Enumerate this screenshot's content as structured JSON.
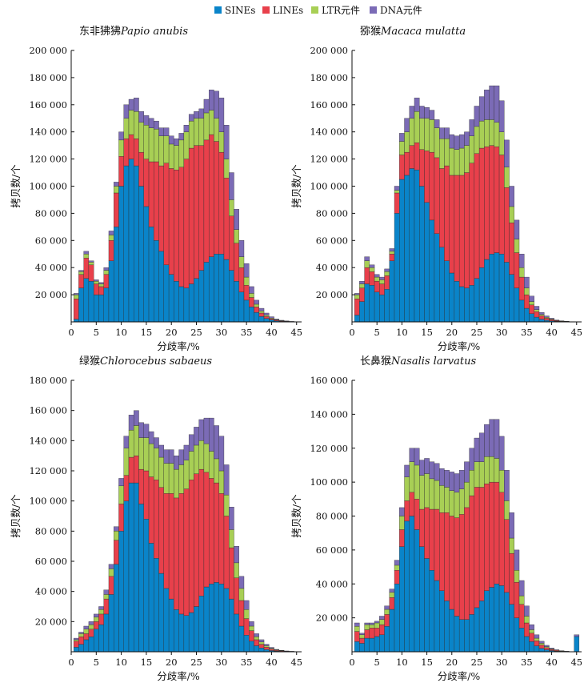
{
  "legend": [
    {
      "label": "SINEs",
      "color": "#0a84c9"
    },
    {
      "label": "LINEs",
      "color": "#e8404b"
    },
    {
      "label": "LTR元件",
      "color": "#a8cf55"
    },
    {
      "label": "DNA元件",
      "color": "#7b6bb6"
    }
  ],
  "chart_data": [
    {
      "type": "bar",
      "stacked": true,
      "title_cn": "东非狒狒",
      "title_latin": "Papio anubis",
      "xlabel": "分歧率/%",
      "ylabel": "拷贝数/个",
      "xlim": [
        0,
        46
      ],
      "ylim": [
        0,
        200000
      ],
      "xticks": [
        "0",
        "5",
        "10",
        "15",
        "20",
        "25",
        "30",
        "35",
        "40",
        "45"
      ],
      "yticks": [
        "20 000",
        "40 000",
        "60 000",
        "80 000",
        "100 000",
        "120 000",
        "140 000",
        "160 000",
        "180 000",
        "200 000"
      ],
      "categories": [
        1,
        2,
        3,
        4,
        5,
        6,
        7,
        8,
        9,
        10,
        11,
        12,
        13,
        14,
        15,
        16,
        17,
        18,
        19,
        20,
        21,
        22,
        23,
        24,
        25,
        26,
        27,
        28,
        29,
        30,
        31,
        32,
        33,
        34,
        35,
        36,
        37,
        38,
        39,
        40,
        41,
        42,
        43,
        44,
        45
      ],
      "series": [
        {
          "name": "SINEs",
          "values": [
            2000,
            25000,
            32000,
            30000,
            20000,
            20000,
            25000,
            45000,
            70000,
            100000,
            115000,
            120000,
            115000,
            100000,
            85000,
            70000,
            60000,
            52000,
            42000,
            35000,
            30000,
            26000,
            25000,
            28000,
            32000,
            38000,
            44000,
            48000,
            50000,
            50000,
            46000,
            38000,
            30000,
            22000,
            16000,
            11000,
            7000,
            4000,
            2500,
            1500,
            800,
            400,
            200,
            100,
            50
          ]
        },
        {
          "name": "LINEs",
          "values": [
            15000,
            10000,
            15000,
            12000,
            8000,
            6000,
            10000,
            15000,
            25000,
            22000,
            20000,
            18000,
            20000,
            25000,
            35000,
            48000,
            58000,
            63000,
            75000,
            78000,
            82000,
            88000,
            95000,
            100000,
            98000,
            92000,
            90000,
            90000,
            83000,
            75000,
            60000,
            40000,
            28000,
            18000,
            11000,
            7000,
            4000,
            2500,
            1500,
            800,
            500,
            300,
            200,
            100,
            50
          ]
        },
        {
          "name": "LTR元件",
          "values": [
            3000,
            2000,
            3000,
            2000,
            2000,
            2000,
            3000,
            4000,
            5000,
            12000,
            15000,
            18000,
            20000,
            22000,
            25000,
            25000,
            24000,
            22000,
            20000,
            18000,
            18000,
            20000,
            20000,
            20000,
            20000,
            20000,
            20000,
            18000,
            17000,
            15000,
            14000,
            12000,
            10000,
            8000,
            6000,
            3000,
            2000,
            1500,
            1000,
            500,
            300,
            200,
            100,
            50,
            0
          ]
        },
        {
          "name": "DNA元件",
          "values": [
            1000,
            1000,
            2000,
            1000,
            1000,
            1000,
            2000,
            3000,
            3000,
            6000,
            10000,
            8000,
            10000,
            8000,
            7000,
            7000,
            6000,
            6000,
            6000,
            6000,
            5000,
            5000,
            5000,
            5000,
            5000,
            7000,
            10000,
            15000,
            20000,
            25000,
            25000,
            20000,
            15000,
            12000,
            10000,
            5000,
            3000,
            2000,
            1500,
            1000,
            500,
            300,
            200,
            100,
            0
          ]
        }
      ]
    },
    {
      "type": "bar",
      "stacked": true,
      "title_cn": "猕猴",
      "title_latin": "Macaca mulatta",
      "xlabel": "分歧率/%",
      "ylabel": "拷贝数/个",
      "xlim": [
        0,
        46
      ],
      "ylim": [
        0,
        200000
      ],
      "xticks": [
        "0",
        "5",
        "10",
        "15",
        "20",
        "25",
        "30",
        "35",
        "40",
        "45"
      ],
      "yticks": [
        "20 000",
        "40 000",
        "60 000",
        "80 000",
        "100 000",
        "120 000",
        "140 000",
        "160 000",
        "180 000",
        "200 000"
      ],
      "categories": [
        1,
        2,
        3,
        4,
        5,
        6,
        7,
        8,
        9,
        10,
        11,
        12,
        13,
        14,
        15,
        16,
        17,
        18,
        19,
        20,
        21,
        22,
        23,
        24,
        25,
        26,
        27,
        28,
        29,
        30,
        31,
        32,
        33,
        34,
        35,
        36,
        37,
        38,
        39,
        40,
        41,
        42,
        43,
        44,
        45
      ],
      "series": [
        {
          "name": "SINEs",
          "values": [
            5000,
            15000,
            28000,
            27000,
            22000,
            20000,
            24000,
            45000,
            80000,
            105000,
            108000,
            113000,
            112000,
            100000,
            88000,
            75000,
            65000,
            55000,
            45000,
            36000,
            30000,
            26000,
            25000,
            27000,
            32000,
            40000,
            46000,
            50000,
            51000,
            50000,
            44000,
            35000,
            25000,
            16000,
            10000,
            6000,
            3500,
            2000,
            1200,
            700,
            400,
            200,
            100,
            50,
            20
          ]
        },
        {
          "name": "LINEs",
          "values": [
            12000,
            10000,
            12000,
            10000,
            8000,
            8000,
            10000,
            5000,
            15000,
            18000,
            17000,
            17000,
            20000,
            27000,
            38000,
            50000,
            56000,
            58000,
            70000,
            72000,
            78000,
            82000,
            85000,
            90000,
            92000,
            88000,
            83000,
            80000,
            78000,
            73000,
            55000,
            38000,
            26000,
            17000,
            10000,
            6500,
            4000,
            2500,
            1500,
            1000,
            500,
            300,
            200,
            100,
            50
          ]
        },
        {
          "name": "LTR元件",
          "values": [
            3000,
            3000,
            5000,
            3000,
            3000,
            3000,
            3000,
            2000,
            2000,
            10000,
            15000,
            20000,
            23000,
            23000,
            24000,
            24000,
            22000,
            22000,
            20000,
            20000,
            19000,
            20000,
            20000,
            20000,
            20000,
            20000,
            20000,
            19000,
            18000,
            17000,
            15000,
            12000,
            10000,
            7000,
            5000,
            2500,
            1500,
            1000,
            700,
            400,
            200,
            100,
            50,
            0,
            0
          ]
        },
        {
          "name": "DNA元件",
          "values": [
            1000,
            2000,
            3000,
            2000,
            2000,
            2000,
            2000,
            2000,
            3000,
            6000,
            10000,
            9000,
            10000,
            9000,
            8000,
            7000,
            6000,
            8000,
            8000,
            10000,
            10000,
            10000,
            10000,
            12000,
            15000,
            18000,
            22000,
            25000,
            27000,
            23000,
            20000,
            15000,
            14000,
            10000,
            8000,
            4000,
            2500,
            1500,
            1000,
            600,
            300,
            150,
            100,
            50,
            20
          ]
        }
      ]
    },
    {
      "type": "bar",
      "stacked": true,
      "title_cn": "绿猴",
      "title_latin": "Chlorocebus sabaeus",
      "xlabel": "分歧率/%",
      "ylabel": "拷贝数/个",
      "xlim": [
        0,
        46
      ],
      "ylim": [
        0,
        180000
      ],
      "xticks": [
        "0",
        "5",
        "10",
        "15",
        "20",
        "25",
        "30",
        "35",
        "40",
        "45"
      ],
      "yticks": [
        "20 000",
        "40 000",
        "60 000",
        "80 000",
        "100 000",
        "120 000",
        "140 000",
        "160 000",
        "180 000"
      ],
      "categories": [
        1,
        2,
        3,
        4,
        5,
        6,
        7,
        8,
        9,
        10,
        11,
        12,
        13,
        14,
        15,
        16,
        17,
        18,
        19,
        20,
        21,
        22,
        23,
        24,
        25,
        26,
        27,
        28,
        29,
        30,
        31,
        32,
        33,
        34,
        35,
        36,
        37,
        38,
        39,
        40,
        41,
        42,
        43,
        44,
        45
      ],
      "series": [
        {
          "name": "SINEs",
          "values": [
            3000,
            5000,
            8000,
            10000,
            15000,
            18000,
            25000,
            38000,
            58000,
            80000,
            100000,
            112000,
            112000,
            98000,
            88000,
            72000,
            62000,
            52000,
            42000,
            35000,
            28000,
            25000,
            24000,
            26000,
            30000,
            37000,
            43000,
            45000,
            46000,
            45000,
            42000,
            35000,
            25000,
            17000,
            11000,
            7000,
            4000,
            2500,
            1500,
            800,
            500,
            300,
            150,
            100,
            50
          ]
        },
        {
          "name": "LINEs",
          "values": [
            4000,
            5000,
            4000,
            5000,
            5000,
            7000,
            10000,
            12000,
            16000,
            18000,
            17000,
            17000,
            18000,
            23000,
            32000,
            44000,
            52000,
            57000,
            63000,
            70000,
            74000,
            80000,
            84000,
            88000,
            88000,
            84000,
            76000,
            70000,
            66000,
            60000,
            48000,
            34000,
            24000,
            17000,
            11000,
            7000,
            4000,
            2500,
            1500,
            1000,
            500,
            300,
            200,
            100,
            50
          ]
        },
        {
          "name": "LTR元件",
          "values": [
            1000,
            2000,
            3000,
            3000,
            3000,
            3000,
            3000,
            5000,
            6000,
            12000,
            18000,
            18000,
            20000,
            21000,
            22000,
            22000,
            21000,
            20000,
            20000,
            20000,
            19000,
            19000,
            19000,
            19000,
            19000,
            19000,
            19000,
            18000,
            16000,
            15000,
            14000,
            12000,
            10000,
            8000,
            6000,
            3000,
            2000,
            1500,
            1000,
            500,
            300,
            200,
            100,
            50,
            0
          ]
        },
        {
          "name": "DNA元件",
          "values": [
            1000,
            1000,
            2000,
            2000,
            2000,
            2000,
            3000,
            3000,
            3000,
            5000,
            8000,
            10000,
            10000,
            10000,
            9000,
            8000,
            7000,
            8000,
            9000,
            9000,
            9000,
            10000,
            10000,
            11000,
            12000,
            14000,
            17000,
            22000,
            22000,
            23000,
            20000,
            15000,
            11000,
            8000,
            6000,
            3000,
            2000,
            1500,
            1000,
            600,
            300,
            150,
            100,
            50,
            20
          ]
        }
      ]
    },
    {
      "type": "bar",
      "stacked": true,
      "title_cn": "长鼻猴",
      "title_latin": "Nasalis larvatus",
      "xlabel": "分歧率/%",
      "ylabel": "拷贝数/个",
      "xlim": [
        0,
        46
      ],
      "ylim": [
        0,
        160000
      ],
      "xticks": [
        "0",
        "5",
        "10",
        "15",
        "20",
        "25",
        "30",
        "35",
        "40",
        "45"
      ],
      "yticks": [
        "20 000",
        "40 000",
        "60 000",
        "80 000",
        "100 000",
        "120 000",
        "140 000",
        "160 000"
      ],
      "categories": [
        1,
        2,
        3,
        4,
        5,
        6,
        7,
        8,
        9,
        10,
        11,
        12,
        13,
        14,
        15,
        16,
        17,
        18,
        19,
        20,
        21,
        22,
        23,
        24,
        25,
        26,
        27,
        28,
        29,
        30,
        31,
        32,
        33,
        34,
        35,
        36,
        37,
        38,
        39,
        40,
        41,
        42,
        43,
        44,
        45
      ],
      "series": [
        {
          "name": "SINEs",
          "values": [
            6000,
            5000,
            8000,
            8000,
            9000,
            10000,
            15000,
            25000,
            40000,
            62000,
            77000,
            80000,
            72000,
            62000,
            55000,
            48000,
            42000,
            36000,
            30000,
            25000,
            21000,
            19000,
            19000,
            22000,
            26000,
            30000,
            36000,
            38000,
            40000,
            39000,
            35000,
            28000,
            20000,
            14000,
            9000,
            6000,
            3500,
            2000,
            1200,
            700,
            400,
            200,
            100,
            50,
            9000
          ]
        },
        {
          "name": "LINEs",
          "values": [
            6000,
            3000,
            5000,
            6000,
            5000,
            6000,
            7000,
            7000,
            8000,
            10000,
            12000,
            14000,
            18000,
            22000,
            30000,
            36000,
            42000,
            46000,
            52000,
            55000,
            58000,
            62000,
            66000,
            70000,
            71000,
            67000,
            63000,
            62000,
            60000,
            55000,
            43000,
            30000,
            21000,
            14000,
            8000,
            5000,
            3000,
            2000,
            1200,
            700,
            400,
            200,
            100,
            50,
            0
          ]
        },
        {
          "name": "LTR元件",
          "values": [
            3000,
            2000,
            3000,
            2000,
            3000,
            3000,
            3000,
            3000,
            3000,
            8000,
            14000,
            18000,
            20000,
            20000,
            20000,
            18000,
            17000,
            16000,
            15000,
            15000,
            15000,
            15000,
            15000,
            15000,
            15000,
            15000,
            16000,
            15000,
            14000,
            13000,
            11000,
            9000,
            7000,
            5000,
            4000,
            2000,
            1500,
            1000,
            600,
            300,
            150,
            100,
            50,
            0,
            0
          ]
        },
        {
          "name": "DNA元件",
          "values": [
            2000,
            1000,
            1000,
            1000,
            1000,
            2000,
            2000,
            2000,
            3000,
            5000,
            7000,
            8000,
            10000,
            9000,
            9000,
            10000,
            10000,
            10000,
            10000,
            11000,
            11000,
            11000,
            12000,
            13000,
            14000,
            17000,
            19000,
            22000,
            23000,
            20000,
            18000,
            15000,
            12000,
            9000,
            6000,
            3000,
            2000,
            1200,
            800,
            500,
            250,
            120,
            60,
            30,
            1000
          ]
        }
      ]
    }
  ]
}
